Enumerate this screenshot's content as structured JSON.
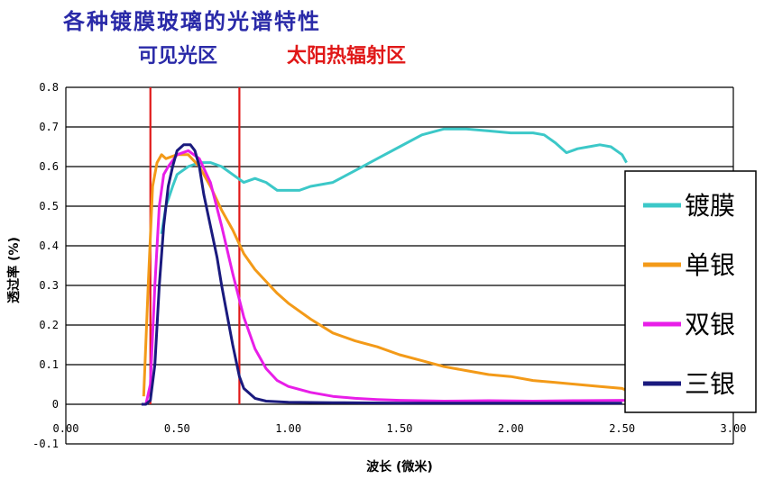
{
  "title": "各种镀膜玻璃的光谱特性",
  "region_labels": {
    "visible": "可见光区",
    "solar": "太阳热辐射区"
  },
  "colors": {
    "region_visible_text": "#2a2aa8",
    "region_solar_text": "#e01818",
    "boundary_lines": "#e01818",
    "gridlines": "#000000"
  },
  "chart_data": {
    "type": "line",
    "title": "各种镀膜玻璃的光谱特性",
    "xlabel": "波长 (微米)",
    "ylabel": "透过率 (%)",
    "xlim": [
      0,
      3
    ],
    "ylim": [
      -0.1,
      0.8
    ],
    "grid": "horizontal",
    "legend_position": "right",
    "x_tick_labels": [
      "0.00",
      "0.50",
      "1.00",
      "1.50",
      "2.00",
      "2.50",
      "3.00"
    ],
    "x_ticks": [
      0,
      0.5,
      1.0,
      1.5,
      2.0,
      2.5,
      3.0
    ],
    "y_tick_labels": [
      "-0.1",
      "0",
      "0.1",
      "0.2",
      "0.3",
      "0.4",
      "0.5",
      "0.6",
      "0.7",
      "0.8"
    ],
    "y_ticks": [
      -0.1,
      0,
      0.1,
      0.2,
      0.3,
      0.4,
      0.5,
      0.6,
      0.7,
      0.8
    ],
    "vertical_markers": [
      0.38,
      0.78
    ],
    "series": [
      {
        "name": "镀膜",
        "color": "#3cc8c8",
        "points": [
          [
            0.43,
            0.43
          ],
          [
            0.45,
            0.5
          ],
          [
            0.48,
            0.55
          ],
          [
            0.5,
            0.58
          ],
          [
            0.55,
            0.6
          ],
          [
            0.6,
            0.61
          ],
          [
            0.65,
            0.61
          ],
          [
            0.7,
            0.6
          ],
          [
            0.75,
            0.58
          ],
          [
            0.8,
            0.56
          ],
          [
            0.85,
            0.57
          ],
          [
            0.9,
            0.56
          ],
          [
            0.95,
            0.54
          ],
          [
            1.0,
            0.54
          ],
          [
            1.05,
            0.54
          ],
          [
            1.1,
            0.55
          ],
          [
            1.2,
            0.56
          ],
          [
            1.3,
            0.59
          ],
          [
            1.4,
            0.62
          ],
          [
            1.5,
            0.65
          ],
          [
            1.6,
            0.68
          ],
          [
            1.7,
            0.695
          ],
          [
            1.8,
            0.695
          ],
          [
            1.9,
            0.69
          ],
          [
            2.0,
            0.685
          ],
          [
            2.1,
            0.685
          ],
          [
            2.15,
            0.68
          ],
          [
            2.2,
            0.66
          ],
          [
            2.25,
            0.635
          ],
          [
            2.3,
            0.645
          ],
          [
            2.35,
            0.65
          ],
          [
            2.4,
            0.655
          ],
          [
            2.45,
            0.65
          ],
          [
            2.5,
            0.63
          ],
          [
            2.52,
            0.61
          ]
        ]
      },
      {
        "name": "单银",
        "color": "#f39a18",
        "points": [
          [
            0.35,
            0.02
          ],
          [
            0.37,
            0.3
          ],
          [
            0.39,
            0.55
          ],
          [
            0.41,
            0.61
          ],
          [
            0.43,
            0.63
          ],
          [
            0.45,
            0.62
          ],
          [
            0.5,
            0.63
          ],
          [
            0.55,
            0.63
          ],
          [
            0.6,
            0.6
          ],
          [
            0.65,
            0.55
          ],
          [
            0.7,
            0.49
          ],
          [
            0.75,
            0.44
          ],
          [
            0.8,
            0.38
          ],
          [
            0.85,
            0.34
          ],
          [
            0.9,
            0.31
          ],
          [
            0.95,
            0.28
          ],
          [
            1.0,
            0.255
          ],
          [
            1.1,
            0.215
          ],
          [
            1.2,
            0.18
          ],
          [
            1.3,
            0.16
          ],
          [
            1.4,
            0.145
          ],
          [
            1.5,
            0.125
          ],
          [
            1.6,
            0.11
          ],
          [
            1.7,
            0.095
          ],
          [
            1.8,
            0.085
          ],
          [
            1.9,
            0.075
          ],
          [
            2.0,
            0.07
          ],
          [
            2.1,
            0.06
          ],
          [
            2.2,
            0.055
          ],
          [
            2.3,
            0.05
          ],
          [
            2.4,
            0.045
          ],
          [
            2.5,
            0.04
          ],
          [
            2.52,
            0.035
          ]
        ]
      },
      {
        "name": "双银",
        "color": "#e81ee8",
        "points": [
          [
            0.36,
            0.0
          ],
          [
            0.38,
            0.05
          ],
          [
            0.4,
            0.3
          ],
          [
            0.42,
            0.5
          ],
          [
            0.44,
            0.58
          ],
          [
            0.46,
            0.6
          ],
          [
            0.5,
            0.63
          ],
          [
            0.55,
            0.64
          ],
          [
            0.6,
            0.62
          ],
          [
            0.65,
            0.56
          ],
          [
            0.7,
            0.45
          ],
          [
            0.75,
            0.33
          ],
          [
            0.8,
            0.22
          ],
          [
            0.85,
            0.14
          ],
          [
            0.9,
            0.09
          ],
          [
            0.95,
            0.06
          ],
          [
            1.0,
            0.045
          ],
          [
            1.1,
            0.03
          ],
          [
            1.2,
            0.02
          ],
          [
            1.3,
            0.015
          ],
          [
            1.4,
            0.012
          ],
          [
            1.5,
            0.01
          ],
          [
            1.7,
            0.008
          ],
          [
            1.9,
            0.009
          ],
          [
            2.1,
            0.008
          ],
          [
            2.3,
            0.009
          ],
          [
            2.52,
            0.01
          ]
        ]
      },
      {
        "name": "三银",
        "color": "#1a1a7e",
        "points": [
          [
            0.34,
            0.0
          ],
          [
            0.36,
            0.0
          ],
          [
            0.38,
            0.01
          ],
          [
            0.4,
            0.1
          ],
          [
            0.42,
            0.3
          ],
          [
            0.44,
            0.45
          ],
          [
            0.46,
            0.55
          ],
          [
            0.48,
            0.6
          ],
          [
            0.5,
            0.64
          ],
          [
            0.53,
            0.655
          ],
          [
            0.56,
            0.655
          ],
          [
            0.58,
            0.64
          ],
          [
            0.6,
            0.6
          ],
          [
            0.62,
            0.53
          ],
          [
            0.65,
            0.45
          ],
          [
            0.68,
            0.37
          ],
          [
            0.7,
            0.3
          ],
          [
            0.72,
            0.24
          ],
          [
            0.75,
            0.15
          ],
          [
            0.78,
            0.07
          ],
          [
            0.8,
            0.04
          ],
          [
            0.85,
            0.015
          ],
          [
            0.9,
            0.008
          ],
          [
            1.0,
            0.005
          ],
          [
            1.2,
            0.004
          ],
          [
            1.5,
            0.003
          ],
          [
            2.0,
            0.003
          ],
          [
            2.5,
            0.003
          ]
        ]
      }
    ]
  }
}
